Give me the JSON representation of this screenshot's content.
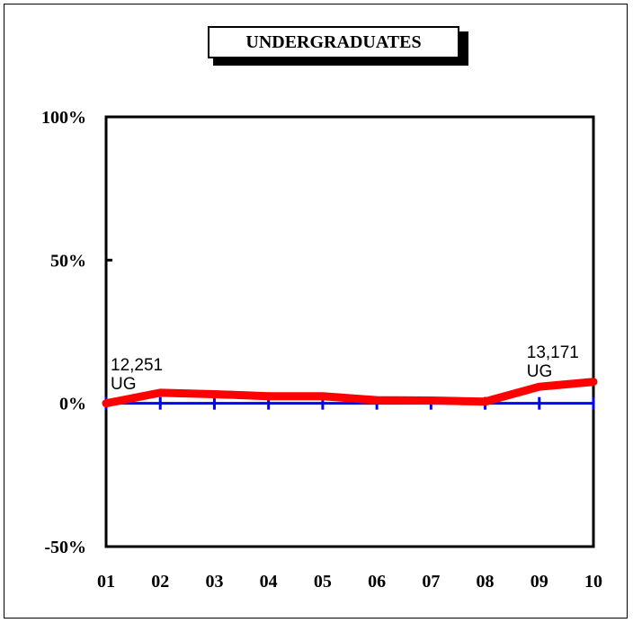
{
  "chart_data": {
    "type": "line",
    "title": "UNDERGRADUATES",
    "xlabel": "",
    "ylabel": "",
    "categories": [
      "01",
      "02",
      "03",
      "04",
      "05",
      "06",
      "07",
      "08",
      "09",
      "10"
    ],
    "y_ticks": [
      "100%",
      "50%",
      "0%",
      "-50%"
    ],
    "ylim": [
      -50,
      100
    ],
    "grid": false,
    "series": [
      {
        "values": [
          0,
          3.7,
          3.2,
          2.5,
          2.5,
          1.1,
          1.0,
          0.6,
          5.8,
          7.5
        ],
        "color": "#ff0000"
      },
      {
        "values": [
          0,
          0,
          0,
          0,
          0,
          0,
          0,
          0,
          0,
          0
        ],
        "color": "#0000ff"
      }
    ],
    "annotations": [
      {
        "category": "01",
        "line1": "12,251",
        "line2": "UG"
      },
      {
        "category": "09",
        "line1": "13,171",
        "line2": "UG"
      }
    ]
  }
}
